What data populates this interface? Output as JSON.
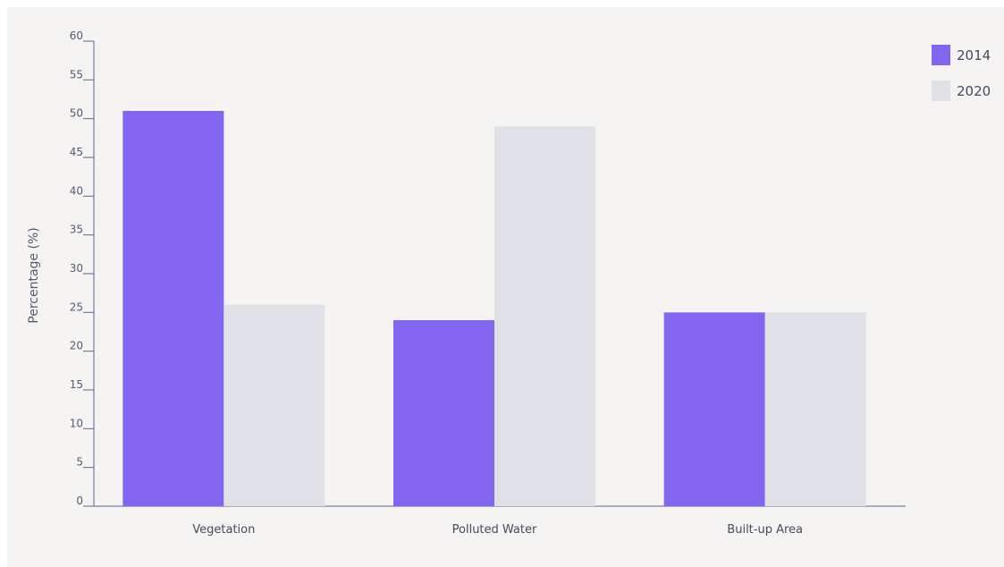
{
  "chart_data": {
    "type": "bar",
    "categories": [
      "Vegetation",
      "Polluted Water",
      "Built-up Area"
    ],
    "series": [
      {
        "name": "2014",
        "color": "#8266f0",
        "values": [
          51,
          24,
          25
        ]
      },
      {
        "name": "2020",
        "color": "#dfe1e6",
        "values": [
          26,
          49,
          25
        ]
      }
    ],
    "title": "",
    "xlabel": "",
    "ylabel": "Percentage (%)",
    "ylim": [
      0,
      60
    ],
    "yticks": [
      "0",
      "5",
      "10",
      "15",
      "20",
      "25",
      "30",
      "35",
      "40",
      "45",
      "50",
      "55",
      "60"
    ],
    "grid": false,
    "legend_position": "top-right"
  }
}
